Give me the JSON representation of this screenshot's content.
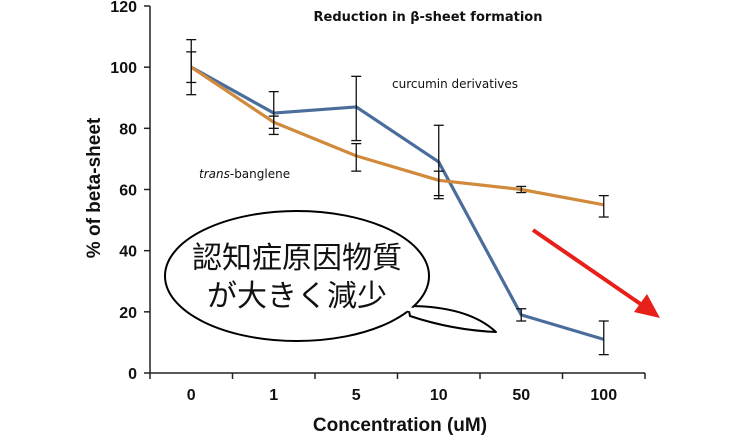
{
  "chart_data": {
    "type": "line",
    "title": "Reduction in β-sheet formation",
    "xlabel": "Concentration (uM)",
    "ylabel": "% of beta-sheet",
    "categories": [
      "0",
      "1",
      "5",
      "10",
      "50",
      "100"
    ],
    "yticks": [
      "0",
      "20",
      "40",
      "60",
      "80",
      "100",
      "120"
    ],
    "ylim": [
      0,
      120
    ],
    "grid": false,
    "legend": "none",
    "series": [
      {
        "key": "curcumin",
        "color": "#4a6d9c",
        "values": [
          100,
          85,
          87,
          69,
          19,
          11
        ],
        "err_low": [
          91,
          78,
          76,
          57,
          17,
          6
        ],
        "err_high": [
          109,
          92,
          97,
          81,
          21,
          17
        ]
      },
      {
        "key": "banglene",
        "color": "#d18a3c",
        "values": [
          100,
          82,
          71,
          63,
          60,
          55
        ],
        "err_low": [
          95,
          80,
          66,
          58,
          59,
          51
        ],
        "err_high": [
          105,
          84,
          75,
          66,
          61,
          58
        ]
      }
    ],
    "annotations": {
      "curcumin_label": "curcumin derivatives",
      "banglene_label_italic": "trans",
      "banglene_label_rest": "-banglene",
      "callout_line1": "認知症原因物質",
      "callout_line2": "が大きく減少",
      "arrow_color": "#e8201a"
    }
  }
}
